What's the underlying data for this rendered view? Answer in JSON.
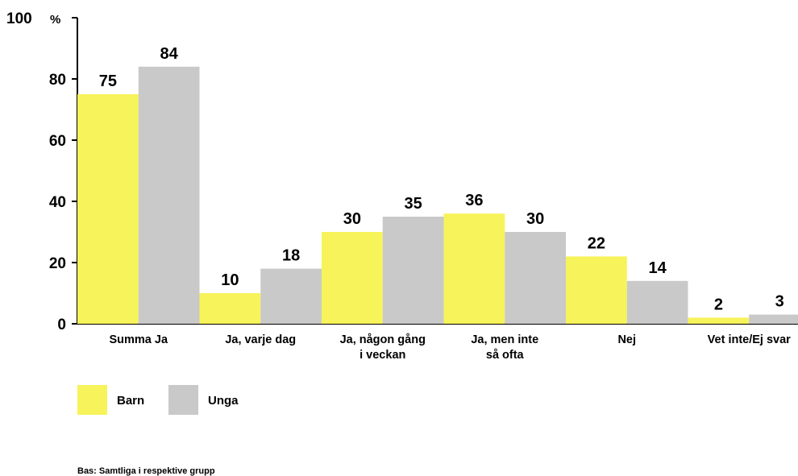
{
  "chart_data": {
    "type": "bar",
    "ymax_label": "100",
    "unit": "%",
    "y_ticks": [
      "0",
      "20",
      "40",
      "60",
      "80"
    ],
    "ylim": [
      0,
      100
    ],
    "categories": [
      [
        "Summa Ja"
      ],
      [
        "Ja, varje dag"
      ],
      [
        "Ja, någon gång",
        "i veckan"
      ],
      [
        "Ja, men inte",
        "så ofta"
      ],
      [
        "Nej"
      ],
      [
        "Vet inte/Ej svar"
      ]
    ],
    "series": [
      {
        "name": "Barn",
        "color": "#F7F35A",
        "values": [
          75,
          10,
          30,
          36,
          22,
          2
        ]
      },
      {
        "name": "Unga",
        "color": "#C9C9C9",
        "values": [
          84,
          18,
          35,
          30,
          14,
          3
        ]
      }
    ],
    "legend_position": "bottom-left",
    "footnote": "Bas: Samtliga i respektive grupp"
  }
}
